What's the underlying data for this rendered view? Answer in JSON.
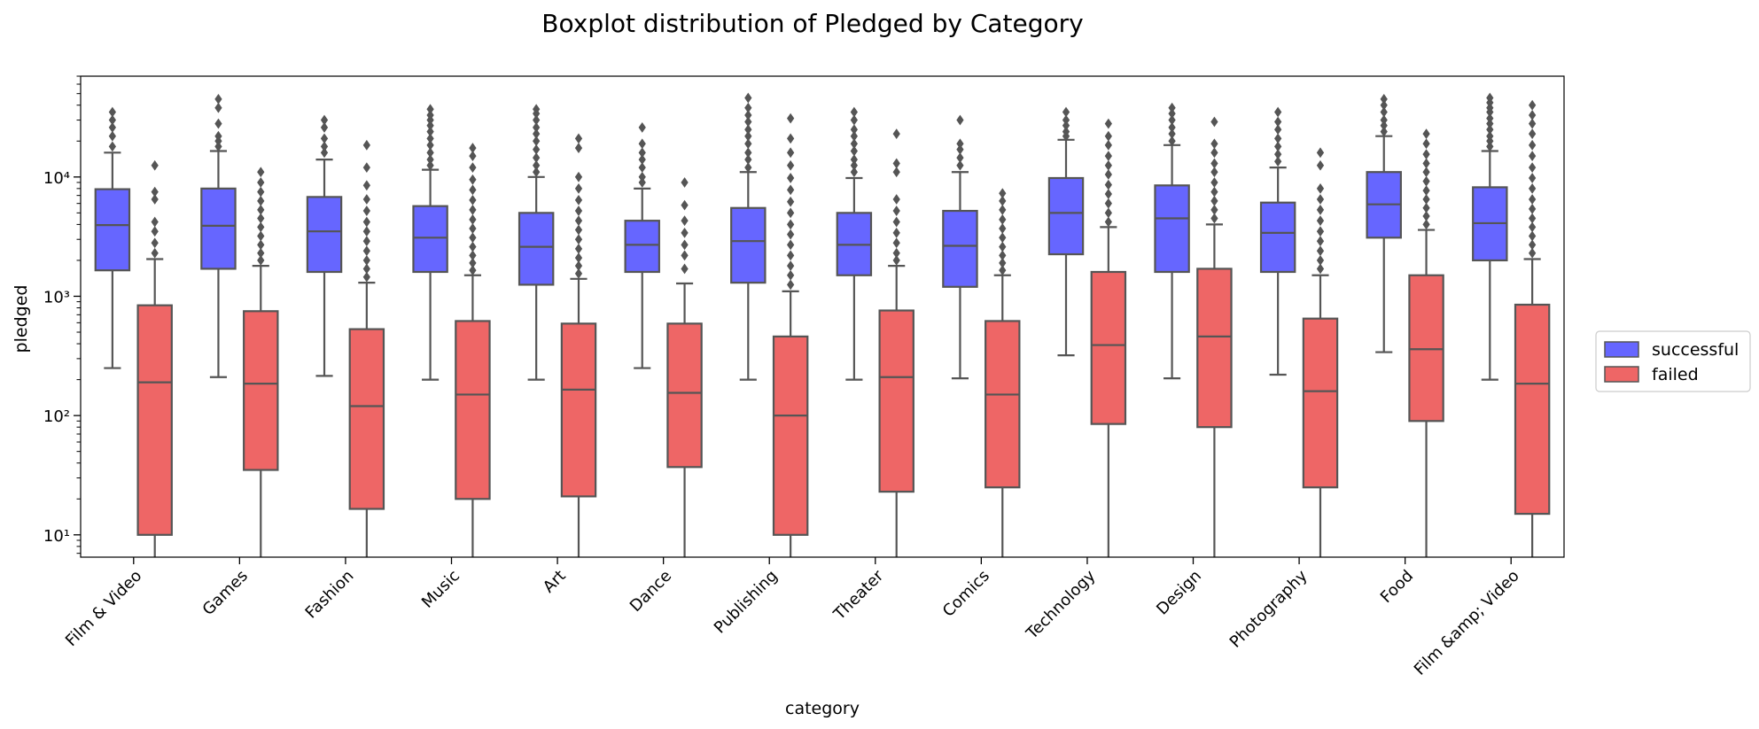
{
  "chart_data": {
    "type": "boxplot",
    "title": "Boxplot distribution of Pledged by Category",
    "xlabel": "category",
    "ylabel": "pledged",
    "yscale": "log",
    "ylim": [
      6.5,
      70000
    ],
    "ytick_values": [
      10,
      100,
      1000,
      10000
    ],
    "ytick_labels": [
      "10¹",
      "10²",
      "10³",
      "10⁴"
    ],
    "categories": [
      "Film & Video",
      "Games",
      "Fashion",
      "Music",
      "Art",
      "Dance",
      "Publishing",
      "Theater",
      "Comics",
      "Technology",
      "Design",
      "Photography",
      "Food",
      "Film &amp; Video"
    ],
    "legend_position": "center-right",
    "series": [
      {
        "name": "successful",
        "color": "#6666ff",
        "boxes": [
          {
            "whislo": 250,
            "q1": 1650,
            "med": 3950,
            "q3": 7900,
            "whishi": 16000,
            "outliers": [
              18000,
              22000,
              26000,
              30000,
              35000
            ]
          },
          {
            "whislo": 210,
            "q1": 1700,
            "med": 3900,
            "q3": 8000,
            "whishi": 16500,
            "outliers": [
              18000,
              20000,
              22000,
              28000,
              38000,
              45000
            ]
          },
          {
            "whislo": 215,
            "q1": 1600,
            "med": 3500,
            "q3": 6800,
            "whishi": 14000,
            "outliers": [
              16000,
              18000,
              21000,
              26000,
              30000
            ]
          },
          {
            "whislo": 200,
            "q1": 1600,
            "med": 3100,
            "q3": 5700,
            "whishi": 11500,
            "outliers": [
              12500,
              14000,
              16000,
              18500,
              21000,
              24000,
              27000,
              30000,
              33000,
              37000
            ]
          },
          {
            "whislo": 200,
            "q1": 1250,
            "med": 2600,
            "q3": 5000,
            "whishi": 10000,
            "outliers": [
              11000,
              12500,
              14500,
              17000,
              20000,
              23000,
              26000,
              30000,
              34000,
              37000
            ]
          },
          {
            "whislo": 250,
            "q1": 1600,
            "med": 2700,
            "q3": 4300,
            "whishi": 8000,
            "outliers": [
              9000,
              10000,
              12000,
              14000,
              16000,
              19000,
              26000
            ]
          },
          {
            "whislo": 200,
            "q1": 1300,
            "med": 2900,
            "q3": 5500,
            "whishi": 11000,
            "outliers": [
              12000,
              14000,
              16000,
              19000,
              22000,
              25000,
              29000,
              33000,
              38000,
              46000
            ]
          },
          {
            "whislo": 200,
            "q1": 1500,
            "med": 2700,
            "q3": 5000,
            "whishi": 9800,
            "outliers": [
              11000,
              12500,
              14000,
              16500,
              19000,
              22000,
              25000,
              30000,
              35000
            ]
          },
          {
            "whislo": 205,
            "q1": 1200,
            "med": 2650,
            "q3": 5200,
            "whishi": 11000,
            "outliers": [
              12500,
              14500,
              17000,
              19000,
              30000
            ]
          },
          {
            "whislo": 320,
            "q1": 2250,
            "med": 5000,
            "q3": 9800,
            "whishi": 20500,
            "outliers": [
              22000,
              24000,
              27000,
              30000,
              35000
            ]
          },
          {
            "whislo": 205,
            "q1": 1600,
            "med": 4500,
            "q3": 8500,
            "whishi": 18500,
            "outliers": [
              20000,
              23000,
              26000,
              30000,
              34000,
              38000
            ]
          },
          {
            "whislo": 220,
            "q1": 1600,
            "med": 3400,
            "q3": 6100,
            "whishi": 12000,
            "outliers": [
              13500,
              15500,
              18000,
              21000,
              25000,
              29000,
              35000
            ]
          },
          {
            "whislo": 340,
            "q1": 3100,
            "med": 5900,
            "q3": 11000,
            "whishi": 22000,
            "outliers": [
              24000,
              27000,
              30000,
              35000,
              40000,
              45000
            ]
          },
          {
            "whislo": 200,
            "q1": 2000,
            "med": 4100,
            "q3": 8200,
            "whishi": 16500,
            "outliers": [
              18000,
              20000,
              22000,
              25000,
              28000,
              31000,
              35000,
              38000,
              42000,
              46000
            ]
          }
        ]
      },
      {
        "name": "failed",
        "color": "#ee6666",
        "boxes": [
          {
            "whislo": 1,
            "q1": 10,
            "med": 190,
            "q3": 840,
            "whishi": 2050,
            "outliers": [
              2300,
              2800,
              3500,
              4200,
              6500,
              7500,
              12500
            ]
          },
          {
            "whislo": 1,
            "q1": 35,
            "med": 185,
            "q3": 750,
            "whishi": 1800,
            "outliers": [
              2000,
              2300,
              2700,
              3200,
              3800,
              4500,
              5300,
              6300,
              7500,
              9000,
              11000
            ]
          },
          {
            "whislo": 1,
            "q1": 16.5,
            "med": 120,
            "q3": 530,
            "whishi": 1300,
            "outliers": [
              1450,
              1700,
              2000,
              2400,
              2900,
              3500,
              4200,
              5200,
              6500,
              8500,
              12000,
              18500
            ]
          },
          {
            "whislo": 1,
            "q1": 20,
            "med": 150,
            "q3": 620,
            "whishi": 1500,
            "outliers": [
              1650,
              1900,
              2200,
              2600,
              3100,
              3700,
              4400,
              5300,
              6400,
              7800,
              9500,
              12000,
              15000,
              17500
            ]
          },
          {
            "whislo": 1,
            "q1": 21,
            "med": 165,
            "q3": 590,
            "whishi": 1400,
            "outliers": [
              1550,
              1800,
              2100,
              2500,
              3000,
              3600,
              4300,
              5200,
              6400,
              8000,
              10000,
              17500,
              21000
            ]
          },
          {
            "whislo": 1,
            "q1": 37,
            "med": 155,
            "q3": 590,
            "whishi": 1280,
            "outliers": [
              1700,
              2200,
              2700,
              3400,
              4300,
              5800,
              9000
            ]
          },
          {
            "whislo": 1,
            "q1": 10,
            "med": 100,
            "q3": 460,
            "whishi": 1100,
            "outliers": [
              1250,
              1500,
              1800,
              2200,
              2700,
              3300,
              4000,
              5000,
              6200,
              7800,
              9800,
              12500,
              16000,
              21000,
              31000
            ]
          },
          {
            "whislo": 1,
            "q1": 23,
            "med": 210,
            "q3": 760,
            "whishi": 1800,
            "outliers": [
              2000,
              2300,
              2800,
              3400,
              4200,
              5200,
              6500,
              11000,
              13000,
              23000
            ]
          },
          {
            "whislo": 1,
            "q1": 25,
            "med": 150,
            "q3": 620,
            "whishi": 1500,
            "outliers": [
              1650,
              1900,
              2200,
              2600,
              3100,
              3700,
              4400,
              5300,
              6300,
              7300
            ]
          },
          {
            "whislo": 1,
            "q1": 85,
            "med": 390,
            "q3": 1600,
            "whishi": 3800,
            "outliers": [
              4200,
              5000,
              6000,
              7200,
              8600,
              10500,
              12500,
              15000,
              18500,
              22000,
              28000
            ]
          },
          {
            "whislo": 1,
            "q1": 80,
            "med": 460,
            "q3": 1700,
            "whishi": 4000,
            "outliers": [
              4500,
              5300,
              6300,
              7500,
              9000,
              11000,
              13000,
              16000,
              19000,
              29000
            ]
          },
          {
            "whislo": 1,
            "q1": 25,
            "med": 160,
            "q3": 650,
            "whishi": 1500,
            "outliers": [
              1700,
              2000,
              2400,
              2900,
              3500,
              4300,
              5300,
              6500,
              8000,
              12500,
              16000
            ]
          },
          {
            "whislo": 1,
            "q1": 90,
            "med": 360,
            "q3": 1500,
            "whishi": 3600,
            "outliers": [
              4000,
              4700,
              5500,
              6500,
              7700,
              9200,
              11000,
              13000,
              15500,
              19000,
              23000
            ]
          },
          {
            "whislo": 1,
            "q1": 15,
            "med": 185,
            "q3": 850,
            "whishi": 2050,
            "outliers": [
              2300,
              2700,
              3200,
              3800,
              4500,
              5400,
              6500,
              8000,
              9800,
              12000,
              15000,
              18500,
              23000,
              28000,
              33000,
              40000
            ]
          }
        ]
      }
    ]
  }
}
